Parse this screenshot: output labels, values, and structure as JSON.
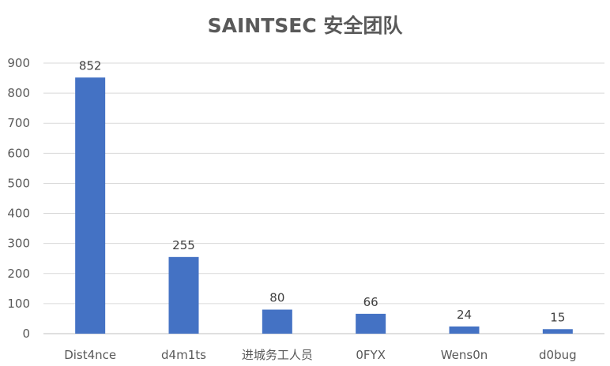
{
  "chart_data": {
    "type": "bar",
    "title": "SAINTSEC 安全团队",
    "xlabel": "",
    "ylabel": "",
    "categories": [
      "Dist4nce",
      "d4m1ts",
      "进城务工人员",
      "0FYX",
      "Wens0n",
      "d0bug"
    ],
    "values": [
      852,
      255,
      80,
      66,
      24,
      15
    ],
    "ylim": [
      0,
      900
    ],
    "yticks": [
      0,
      100,
      200,
      300,
      400,
      500,
      600,
      700,
      800,
      900
    ],
    "grid": true,
    "legend": "none",
    "bar_color": "#4472c4"
  }
}
